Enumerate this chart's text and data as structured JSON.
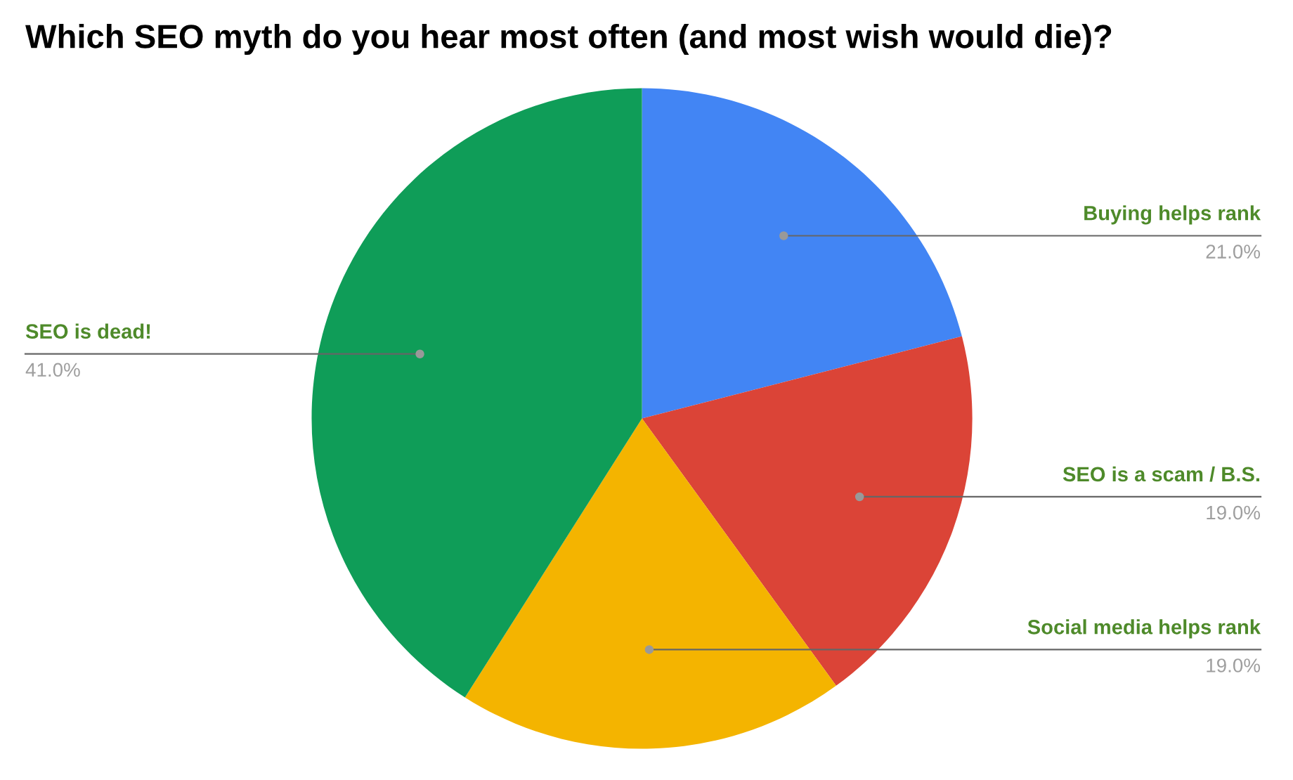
{
  "chart_data": {
    "type": "pie",
    "title": "Which SEO myth do you hear most often (and most wish would die)?",
    "categories": [
      "Buying helps rank",
      "SEO is a scam / B.S.",
      "Social media helps rank",
      "SEO is dead!"
    ],
    "values": [
      21.0,
      19.0,
      19.0,
      41.0
    ],
    "colors": [
      "#4285f4",
      "#db4437",
      "#f4b400",
      "#0f9d58"
    ],
    "value_labels": [
      "21.0%",
      "19.0%",
      "19.0%",
      "41.0%"
    ]
  }
}
